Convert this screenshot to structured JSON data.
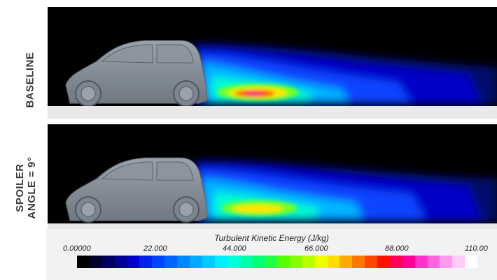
{
  "labels": {
    "top": "BASELINE",
    "bottom_line1": "SPOILER",
    "bottom_line2": "ANGLE = 9°"
  },
  "legend": {
    "title": "Turbulent Kinetic Energy (J/kg)",
    "ticks": [
      "0.00000",
      "22.000",
      "44.000",
      "66.000",
      "88.000",
      "110.00"
    ],
    "colors": [
      "#000000",
      "#00002a",
      "#000060",
      "#000099",
      "#0000cc",
      "#0022ee",
      "#0044ff",
      "#0066ff",
      "#0088ff",
      "#00aaff",
      "#00ccff",
      "#00eeff",
      "#00ffdd",
      "#00ffaa",
      "#00ff77",
      "#22ff44",
      "#55ff00",
      "#88ff00",
      "#bbff00",
      "#eeff00",
      "#ffdd00",
      "#ffaa00",
      "#ff7700",
      "#ff4400",
      "#ff1100",
      "#ff0055",
      "#ff0099",
      "#ff33cc",
      "#ff66dd",
      "#ff99ee",
      "#ffccf5",
      "#ffffff"
    ]
  }
}
